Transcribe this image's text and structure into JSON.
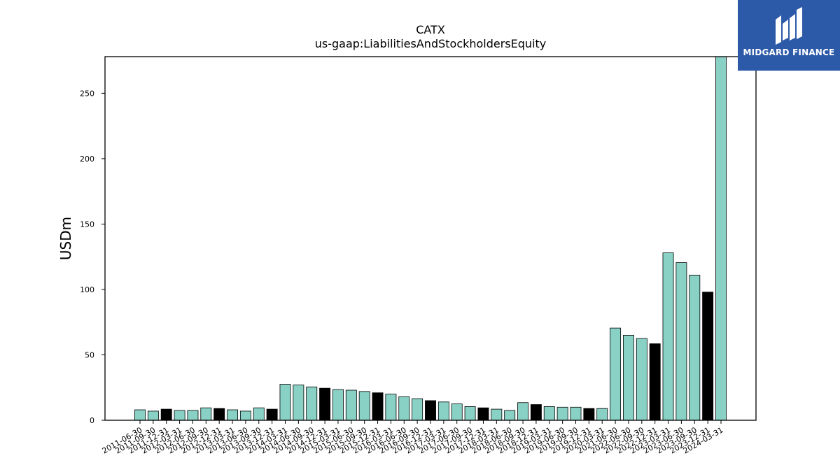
{
  "brand": {
    "name": "MIDGARD FINANCE",
    "logo_icon": "midgard-logo-icon",
    "colors": {
      "background": "#2d5aa8",
      "text": "#ffffff"
    }
  },
  "colors": {
    "bar_default": "#88d1c4",
    "bar_highlight": "#000000",
    "edge": "#000000"
  },
  "chart_data": {
    "type": "bar",
    "title": "CATX",
    "subtitle": "us-gaap:LiabilitiesAndStockholdersEquity",
    "ylabel": "USDm",
    "xlabel": "",
    "ylim": [
      0,
      278
    ],
    "yticks": [
      0,
      50,
      100,
      150,
      200,
      250
    ],
    "grid": false,
    "legend": "none",
    "categories": [
      "2011-06-30",
      "2011-09-30",
      "2011-12-31",
      "2012-03-31",
      "2012-06-30",
      "2012-09-30",
      "2012-12-31",
      "2013-03-31",
      "2013-06-30",
      "2013-09-30",
      "2013-12-31",
      "2014-03-31",
      "2014-06-30",
      "2014-09-30",
      "2014-12-31",
      "2015-03-31",
      "2015-06-30",
      "2015-09-30",
      "2015-12-31",
      "2016-03-31",
      "2016-06-30",
      "2016-09-30",
      "2016-12-31",
      "2017-03-31",
      "2017-06-30",
      "2017-09-30",
      "2017-12-31",
      "2018-03-31",
      "2018-06-30",
      "2018-09-30",
      "2018-12-31",
      "2019-03-31",
      "2019-06-30",
      "2019-09-30",
      "2019-12-31",
      "2020-03-31",
      "2021-06-30",
      "2022-06-30",
      "2022-09-30",
      "2022-12-31",
      "2023-03-31",
      "2023-06-30",
      "2023-09-30",
      "2023-12-31",
      "2024-03-31"
    ],
    "values": [
      8,
      7,
      8.5,
      7.5,
      7.5,
      9.5,
      9,
      8,
      7,
      9.5,
      8.5,
      27.5,
      27,
      25.5,
      24.5,
      23.5,
      23,
      22,
      21,
      20,
      18,
      16.5,
      15,
      14,
      12.5,
      10.5,
      9.5,
      8.5,
      7.5,
      13.5,
      12,
      10.5,
      10,
      10,
      9,
      9,
      70.5,
      65,
      62.5,
      58.5,
      128,
      120.5,
      111,
      98,
      278
    ],
    "highlight_categories": [
      "2011-12-31",
      "2012-12-31",
      "2013-12-31",
      "2014-12-31",
      "2015-12-31",
      "2016-12-31",
      "2017-12-31",
      "2018-12-31",
      "2019-12-31",
      "2022-12-31",
      "2023-12-31"
    ]
  }
}
